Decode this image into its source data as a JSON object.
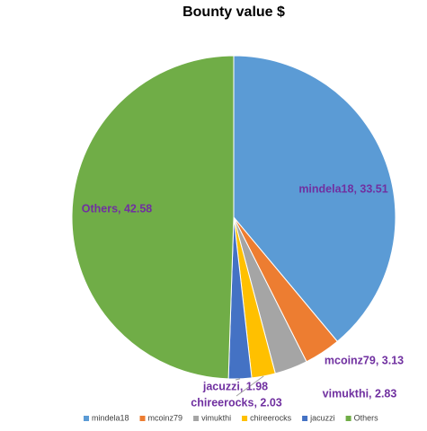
{
  "chart_data": {
    "type": "pie",
    "title": "Bounty value $",
    "categories": [
      "mindela18",
      "mcoinz79",
      "vimukthi",
      "chireerocks",
      "jacuzzi",
      "Others"
    ],
    "values": [
      33.51,
      3.13,
      2.83,
      2.03,
      1.98,
      42.58
    ],
    "value_labels": [
      "mindela18, 33.51",
      "mcoinz79, 3.13",
      "vimukthi, 2.83",
      "chireerocks, 2.03",
      "jacuzzi, 1.98",
      "Others, 42.58"
    ],
    "colors": [
      "#5b9bd5",
      "#ed7d31",
      "#a5a5a5",
      "#ffc000",
      "#4472c4",
      "#70ad47"
    ],
    "legend": "bottom"
  }
}
